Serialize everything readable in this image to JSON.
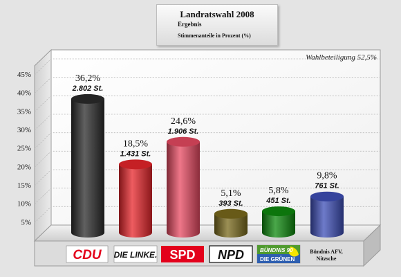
{
  "header": {
    "title": "Landratswahl 2008",
    "subtitle": "Ergebnis",
    "note": "Stimmenanteile in Prozent (%)"
  },
  "turnout_label": "Wahlbeteiligung 52,5%",
  "chart_data": {
    "type": "bar",
    "title": "Landratswahl 2008",
    "subtitle": "Ergebnis",
    "ylabel": "",
    "ylim": [
      0,
      45
    ],
    "yticks": [
      "5%",
      "10%",
      "15%",
      "20%",
      "25%",
      "30%",
      "35%",
      "40%",
      "45%"
    ],
    "grid": true,
    "categories": [
      "CDU",
      "DIE LINKE.",
      "SPD",
      "NPD",
      "BÜNDNIS 90 DIE GRÜNEN",
      "Bündnis AFV, Nitzsche"
    ],
    "values": [
      36.2,
      18.5,
      24.6,
      5.1,
      5.8,
      9.8
    ],
    "value_labels": [
      "36,2%",
      "18,5%",
      "24,6%",
      "5,1%",
      "5,8%",
      "9,8%"
    ],
    "vote_labels": [
      "2.802 St.",
      "1.431 St.",
      "1.906 St.",
      "393 St.",
      "451 St.",
      "761 St."
    ],
    "colors": [
      "#2b2b2b",
      "#e8262b",
      "#e84a62",
      "#7a6a1c",
      "#0e8a0e",
      "#3e4fb8"
    ]
  },
  "logos": {
    "cdu": "CDU",
    "linke": "DIE LINKE.",
    "spd": "SPD",
    "npd": "NPD",
    "gruene_top": "BÜNDNIS 90",
    "gruene_bottom": "DIE GRÜNEN",
    "afv_line1": "Bündnis AFV,",
    "afv_line2": "Nitzsche"
  }
}
